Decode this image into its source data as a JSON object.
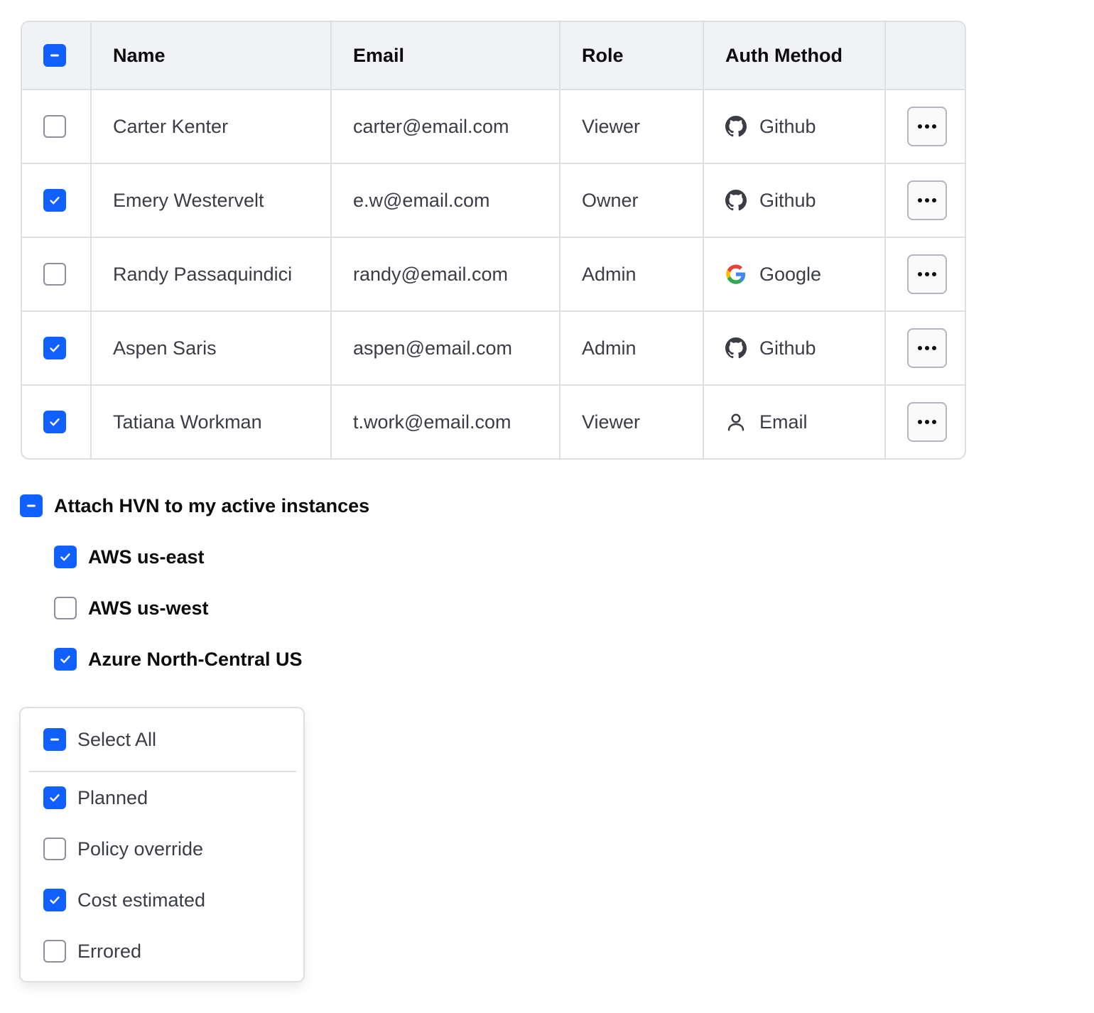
{
  "table": {
    "header_checkbox": "indeterminate",
    "columns": [
      "Name",
      "Email",
      "Role",
      "Auth Method"
    ],
    "rows": [
      {
        "checked": false,
        "name": "Carter Kenter",
        "email": "carter@email.com",
        "role": "Viewer",
        "auth": "Github",
        "auth_icon": "github-icon"
      },
      {
        "checked": true,
        "name": "Emery Westervelt",
        "email": "e.w@email.com",
        "role": "Owner",
        "auth": "Github",
        "auth_icon": "github-icon"
      },
      {
        "checked": false,
        "name": "Randy Passaquindici",
        "email": "randy@email.com",
        "role": "Admin",
        "auth": "Google",
        "auth_icon": "google-icon"
      },
      {
        "checked": true,
        "name": "Aspen Saris",
        "email": "aspen@email.com",
        "role": "Admin",
        "auth": "Github",
        "auth_icon": "github-icon"
      },
      {
        "checked": true,
        "name": "Tatiana Workman",
        "email": "t.work@email.com",
        "role": "Viewer",
        "auth": "Email",
        "auth_icon": "user-icon"
      }
    ]
  },
  "hvn": {
    "parent": {
      "label": "Attach HVN to my active instances",
      "state": "indeterminate"
    },
    "children": [
      {
        "label": "AWS us-east",
        "checked": true
      },
      {
        "label": "AWS us-west",
        "checked": false
      },
      {
        "label": "Azure North-Central US",
        "checked": true
      }
    ]
  },
  "filter": {
    "select_all": {
      "label": "Select All",
      "state": "indeterminate"
    },
    "items": [
      {
        "label": "Planned",
        "checked": true
      },
      {
        "label": "Policy override",
        "checked": false
      },
      {
        "label": "Cost estimated",
        "checked": true
      },
      {
        "label": "Errored",
        "checked": false
      }
    ]
  },
  "colors": {
    "accent": "#1060ff",
    "border": "#dedfe3",
    "header_bg": "#f1f2f3"
  }
}
